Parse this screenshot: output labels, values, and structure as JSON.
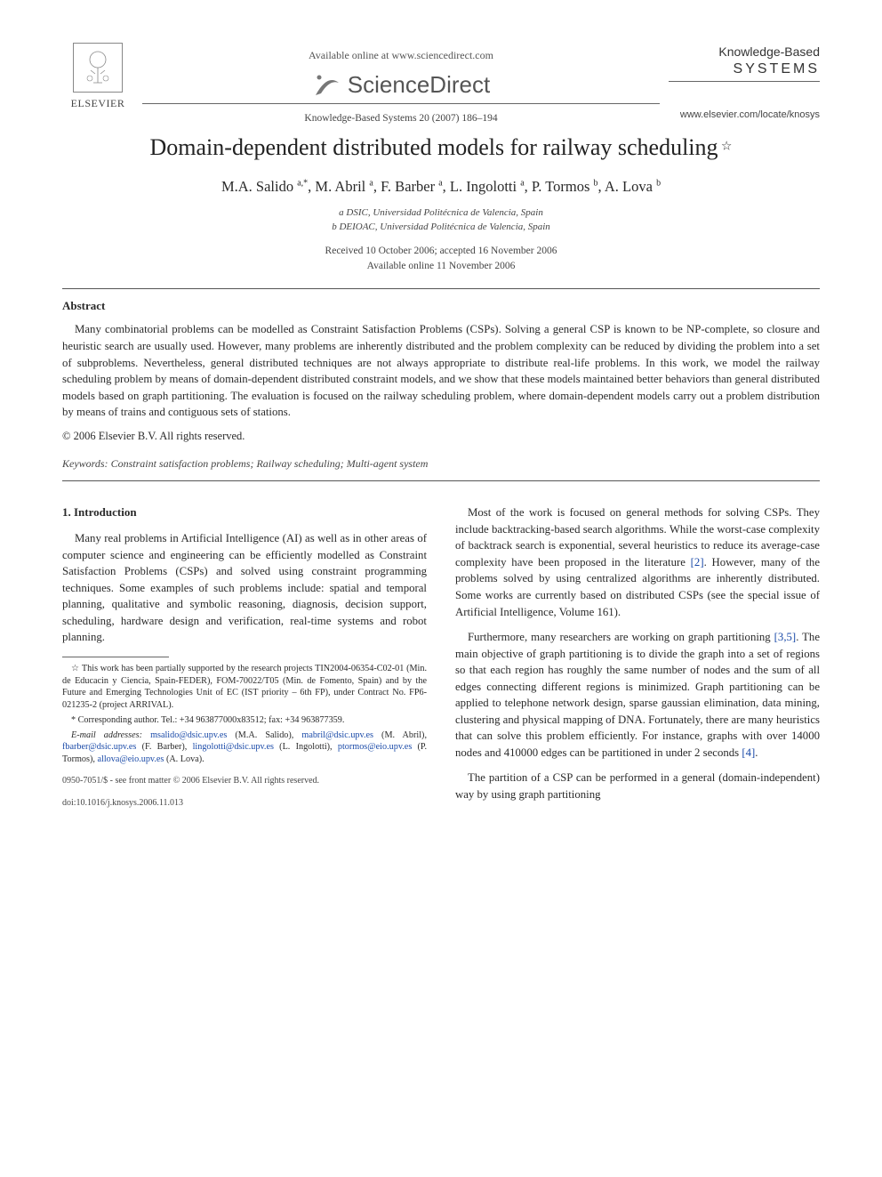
{
  "header": {
    "publisher": "ELSEVIER",
    "available_line": "Available online at www.sciencedirect.com",
    "sd_name": "ScienceDirect",
    "journal_cite": "Knowledge-Based Systems 20 (2007) 186–194",
    "journal_name_top": "Knowledge-Based",
    "journal_name_bottom": "SYSTEMS",
    "locate_url": "www.elsevier.com/locate/knosys"
  },
  "title": "Domain-dependent distributed models for railway scheduling",
  "title_star": "☆",
  "authors": "M.A. Salido ",
  "author_list": [
    {
      "name": "M.A. Salido",
      "sup": "a,*"
    },
    {
      "name": "M. Abril",
      "sup": "a"
    },
    {
      "name": "F. Barber",
      "sup": "a"
    },
    {
      "name": "L. Ingolotti",
      "sup": "a"
    },
    {
      "name": "P. Tormos",
      "sup": "b"
    },
    {
      "name": "A. Lova",
      "sup": "b"
    }
  ],
  "affiliations": {
    "a": "a DSIC, Universidad Politécnica de Valencia, Spain",
    "b": "b DEIOAC, Universidad Politécnica de Valencia, Spain"
  },
  "dates": {
    "received": "Received 10 October 2006; accepted 16 November 2006",
    "online": "Available online 11 November 2006"
  },
  "abstract": {
    "head": "Abstract",
    "body": "Many combinatorial problems can be modelled as Constraint Satisfaction Problems (CSPs). Solving a general CSP is known to be NP-complete, so closure and heuristic search are usually used. However, many problems are inherently distributed and the problem complexity can be reduced by dividing the problem into a set of subproblems. Nevertheless, general distributed techniques are not always appropriate to distribute real-life problems. In this work, we model the railway scheduling problem by means of domain-dependent distributed constraint models, and we show that these models maintained better behaviors than general distributed models based on graph partitioning. The evaluation is focused on the railway scheduling problem, where domain-dependent models carry out a problem distribution by means of trains and contiguous sets of stations.",
    "copyright": "© 2006 Elsevier B.V. All rights reserved."
  },
  "keywords_label": "Keywords:",
  "keywords": " Constraint satisfaction problems; Railway scheduling; Multi-agent system",
  "intro": {
    "head": "1. Introduction",
    "p1": "Many real problems in Artificial Intelligence (AI) as well as in other areas of computer science and engineering can be efficiently modelled as Constraint Satisfaction Problems (CSPs) and solved using constraint programming techniques. Some examples of such problems include: spatial and temporal planning, qualitative and symbolic reasoning, diagnosis, decision support, scheduling, hardware design and verification, real-time systems and robot planning."
  },
  "right_col": {
    "p1_a": "Most of the work is focused on general methods for solving CSPs. They include backtracking-based search algorithms. While the worst-case complexity of backtrack search is exponential, several heuristics to reduce its average-case complexity have been proposed in the literature ",
    "p1_ref": "[2]",
    "p1_b": ". However, many of the problems solved by using centralized algorithms are inherently distributed. Some works are currently based on distributed CSPs (see the special issue of Artificial Intelligence, Volume 161).",
    "p2_a": "Furthermore, many researchers are working on graph partitioning ",
    "p2_ref": "[3,5]",
    "p2_b": ". The main objective of graph partitioning is to divide the graph into a set of regions so that each region has roughly the same number of nodes and the sum of all edges connecting different regions is minimized. Graph partitioning can be applied to telephone network design, sparse gaussian elimination, data mining, clustering and physical mapping of DNA. Fortunately, there are many heuristics that can solve this problem efficiently. For instance, graphs with over 14000 nodes and 410000 edges can be partitioned in under 2 seconds ",
    "p2_ref2": "[4]",
    "p2_c": ".",
    "p3": "The partition of a CSP can be performed in a general (domain-independent) way by using graph partitioning"
  },
  "footnotes": {
    "star": "☆ This work has been partially supported by the research projects TIN2004-06354-C02-01 (Min. de Educacin y Ciencia, Spain-FEDER), FOM-70022/T05 (Min. de Fomento, Spain) and by the Future and Emerging Technologies Unit of EC (IST priority – 6th FP), under Contract No. FP6-021235-2 (project ARRIVAL).",
    "corr_label": "* Corresponding author. Tel.: +34 963877000x83512; fax: +34 963877359.",
    "email_label": "E-mail addresses:",
    "emails": [
      {
        "addr": "msalido@dsic.upv.es",
        "who": " (M.A. Salido), "
      },
      {
        "addr": "mabril@dsic.upv.es",
        "who": " (M. Abril), "
      },
      {
        "addr": "fbarber@dsic.upv.es",
        "who": " (F. Barber), "
      },
      {
        "addr": "lingolotti@dsic.upv.es",
        "who": " (L. Ingolotti), "
      },
      {
        "addr": "ptormos@eio.upv.es",
        "who": " (P. Tormos), "
      },
      {
        "addr": "allova@eio.upv.es",
        "who": " (A. Lova)."
      }
    ]
  },
  "footer": {
    "front_matter": "0950-7051/$ - see front matter © 2006 Elsevier B.V. All rights reserved.",
    "doi": "doi:10.1016/j.knosys.2006.11.013"
  },
  "colors": {
    "link": "#1a4aa8",
    "text": "#2a2a2a",
    "rule": "#555555"
  }
}
